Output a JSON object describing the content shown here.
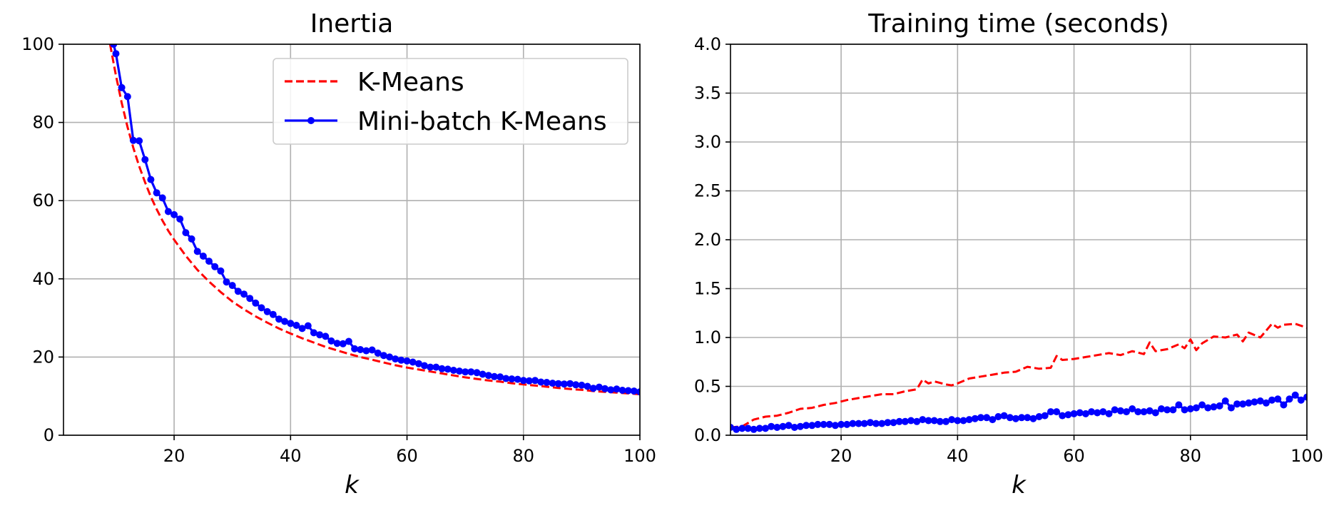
{
  "chart_data": [
    {
      "type": "line",
      "title": "Inertia",
      "xlabel": "k",
      "ylabel": "",
      "xlim": [
        1,
        100
      ],
      "ylim": [
        0,
        100
      ],
      "xticks": [
        20,
        40,
        60,
        80,
        100
      ],
      "yticks": [
        0,
        20,
        40,
        60,
        80,
        100
      ],
      "grid": true,
      "legend": {
        "position": "top-right",
        "entries": [
          {
            "label": "K-Means",
            "color": "#ff0000",
            "style": "dashed",
            "marker": "none"
          },
          {
            "label": "Mini-batch K-Means",
            "color": "#0000ff",
            "style": "solid",
            "marker": "circle"
          }
        ]
      },
      "series": [
        {
          "name": "K-Means",
          "color": "#ff0000",
          "style": "dashed",
          "marker": false,
          "x": [
            9,
            10,
            11,
            12,
            13,
            14,
            15,
            16,
            17,
            18,
            19,
            20,
            22,
            24,
            26,
            28,
            30,
            32,
            34,
            36,
            38,
            40,
            42,
            44,
            46,
            48,
            50,
            52,
            54,
            56,
            58,
            60,
            62,
            64,
            66,
            68,
            70,
            72,
            74,
            76,
            78,
            80,
            82,
            84,
            86,
            88,
            90,
            92,
            94,
            96,
            98,
            100
          ],
          "y": [
            100.0,
            92.0,
            85.0,
            78.8,
            73.5,
            68.8,
            64.7,
            61.0,
            57.8,
            54.9,
            52.3,
            50.0,
            45.9,
            42.3,
            39.3,
            36.6,
            34.2,
            32.2,
            30.4,
            28.8,
            27.3,
            26.0,
            24.8,
            23.7,
            22.6,
            21.7,
            20.8,
            20.0,
            19.3,
            18.6,
            17.9,
            17.3,
            16.8,
            16.3,
            15.8,
            15.3,
            14.8,
            14.4,
            14.0,
            13.7,
            13.3,
            13.0,
            12.7,
            12.4,
            12.1,
            11.8,
            11.6,
            11.3,
            11.1,
            10.9,
            10.7,
            10.5
          ]
        },
        {
          "name": "Mini-batch K-Means",
          "color": "#0000ff",
          "style": "solid",
          "marker": true,
          "x": [
            9.6,
            10,
            11,
            12,
            13,
            14,
            15,
            16,
            17,
            18,
            19,
            20,
            21,
            22,
            23,
            24,
            25,
            26,
            27,
            28,
            29,
            30,
            31,
            32,
            33,
            34,
            35,
            36,
            37,
            38,
            39,
            40,
            41,
            42,
            43,
            44,
            45,
            46,
            47,
            48,
            49,
            50,
            51,
            52,
            53,
            54,
            55,
            56,
            57,
            58,
            59,
            60,
            61,
            62,
            63,
            64,
            65,
            66,
            67,
            68,
            69,
            70,
            71,
            72,
            73,
            74,
            75,
            76,
            77,
            78,
            79,
            80,
            81,
            82,
            83,
            84,
            85,
            86,
            87,
            88,
            89,
            90,
            91,
            92,
            93,
            94,
            95,
            96,
            97,
            98,
            99,
            100
          ],
          "y": [
            100.0,
            97.6,
            88.9,
            86.6,
            75.4,
            75.3,
            70.5,
            65.4,
            62.0,
            60.7,
            57.2,
            56.4,
            55.3,
            51.8,
            50.2,
            47.0,
            45.8,
            44.5,
            43.1,
            42.0,
            39.2,
            38.3,
            36.8,
            36.1,
            35.0,
            33.8,
            32.6,
            31.6,
            30.9,
            29.7,
            29.1,
            28.6,
            28.1,
            27.3,
            28.0,
            26.2,
            25.7,
            25.3,
            24.1,
            23.5,
            23.4,
            24.0,
            22.1,
            21.9,
            21.6,
            21.8,
            21.0,
            20.4,
            20.0,
            19.5,
            19.2,
            19.0,
            18.7,
            18.3,
            17.8,
            17.4,
            17.4,
            17.0,
            16.9,
            16.6,
            16.4,
            16.2,
            16.2,
            16.0,
            15.6,
            15.3,
            15.0,
            14.9,
            14.5,
            14.4,
            14.3,
            14.0,
            13.9,
            14.0,
            13.6,
            13.5,
            13.3,
            13.2,
            13.1,
            13.2,
            12.9,
            12.8,
            12.5,
            12.0,
            12.3,
            11.9,
            11.6,
            11.8,
            11.5,
            11.4,
            11.3,
            11.1
          ]
        }
      ]
    },
    {
      "type": "line",
      "title": "Training time (seconds)",
      "xlabel": "k",
      "ylabel": "",
      "xlim": [
        1,
        100
      ],
      "ylim": [
        0,
        4
      ],
      "xticks": [
        20,
        40,
        60,
        80,
        100
      ],
      "yticks": [
        0.0,
        0.5,
        1.0,
        1.5,
        2.0,
        2.5,
        3.0,
        3.5,
        4.0
      ],
      "ytick_labels": [
        "0.0",
        "0.5",
        "1.0",
        "1.5",
        "2.0",
        "2.5",
        "3.0",
        "3.5",
        "4.0"
      ],
      "grid": true,
      "series": [
        {
          "name": "K-Means",
          "color": "#ff0000",
          "style": "dashed",
          "marker": false,
          "x": [
            1,
            3,
            5,
            7,
            9,
            11,
            13,
            15,
            17,
            19,
            21,
            23,
            25,
            27,
            29,
            31,
            33,
            34,
            35,
            36,
            38,
            39,
            40,
            42,
            44,
            46,
            48,
            50,
            52,
            54,
            56,
            57,
            58,
            60,
            62,
            64,
            66,
            68,
            70,
            72,
            73,
            74,
            76,
            78,
            79,
            80,
            81,
            82,
            84,
            86,
            88,
            89,
            90,
            92,
            93,
            94,
            95,
            96,
            98,
            100
          ],
          "y": [
            0.08,
            0.09,
            0.16,
            0.19,
            0.2,
            0.23,
            0.27,
            0.28,
            0.31,
            0.33,
            0.36,
            0.38,
            0.4,
            0.42,
            0.42,
            0.45,
            0.47,
            0.57,
            0.53,
            0.55,
            0.52,
            0.51,
            0.53,
            0.58,
            0.6,
            0.62,
            0.64,
            0.65,
            0.7,
            0.68,
            0.69,
            0.81,
            0.77,
            0.78,
            0.8,
            0.82,
            0.84,
            0.82,
            0.86,
            0.83,
            0.95,
            0.86,
            0.88,
            0.93,
            0.89,
            0.98,
            0.87,
            0.94,
            1.01,
            1.0,
            1.03,
            0.96,
            1.05,
            1.0,
            1.07,
            1.14,
            1.1,
            1.13,
            1.14,
            1.1
          ]
        },
        {
          "name": "Mini-batch K-Means",
          "color": "#0000ff",
          "style": "solid",
          "marker": true,
          "x": [
            1,
            2,
            3,
            4,
            5,
            6,
            7,
            8,
            9,
            10,
            11,
            12,
            13,
            14,
            15,
            16,
            17,
            18,
            19,
            20,
            21,
            22,
            23,
            24,
            25,
            26,
            27,
            28,
            29,
            30,
            31,
            32,
            33,
            34,
            35,
            36,
            37,
            38,
            39,
            40,
            41,
            42,
            43,
            44,
            45,
            46,
            47,
            48,
            49,
            50,
            51,
            52,
            53,
            54,
            55,
            56,
            57,
            58,
            59,
            60,
            61,
            62,
            63,
            64,
            65,
            66,
            67,
            68,
            69,
            70,
            71,
            72,
            73,
            74,
            75,
            76,
            77,
            78,
            79,
            80,
            81,
            82,
            83,
            84,
            85,
            86,
            87,
            88,
            89,
            90,
            91,
            92,
            93,
            94,
            95,
            96,
            97,
            98,
            99,
            100
          ],
          "y": [
            0.08,
            0.06,
            0.07,
            0.07,
            0.06,
            0.07,
            0.07,
            0.09,
            0.08,
            0.09,
            0.1,
            0.08,
            0.09,
            0.1,
            0.1,
            0.11,
            0.11,
            0.11,
            0.1,
            0.11,
            0.11,
            0.12,
            0.12,
            0.12,
            0.13,
            0.12,
            0.12,
            0.13,
            0.13,
            0.14,
            0.14,
            0.15,
            0.14,
            0.16,
            0.15,
            0.15,
            0.14,
            0.14,
            0.16,
            0.15,
            0.15,
            0.16,
            0.17,
            0.18,
            0.18,
            0.16,
            0.19,
            0.2,
            0.18,
            0.17,
            0.18,
            0.18,
            0.17,
            0.19,
            0.2,
            0.24,
            0.24,
            0.2,
            0.21,
            0.22,
            0.23,
            0.22,
            0.24,
            0.23,
            0.24,
            0.22,
            0.26,
            0.25,
            0.24,
            0.27,
            0.24,
            0.24,
            0.25,
            0.23,
            0.27,
            0.26,
            0.26,
            0.31,
            0.26,
            0.27,
            0.28,
            0.31,
            0.28,
            0.29,
            0.3,
            0.35,
            0.28,
            0.32,
            0.32,
            0.33,
            0.34,
            0.35,
            0.33,
            0.36,
            0.37,
            0.31,
            0.37,
            0.41,
            0.36,
            0.39
          ]
        }
      ]
    }
  ]
}
